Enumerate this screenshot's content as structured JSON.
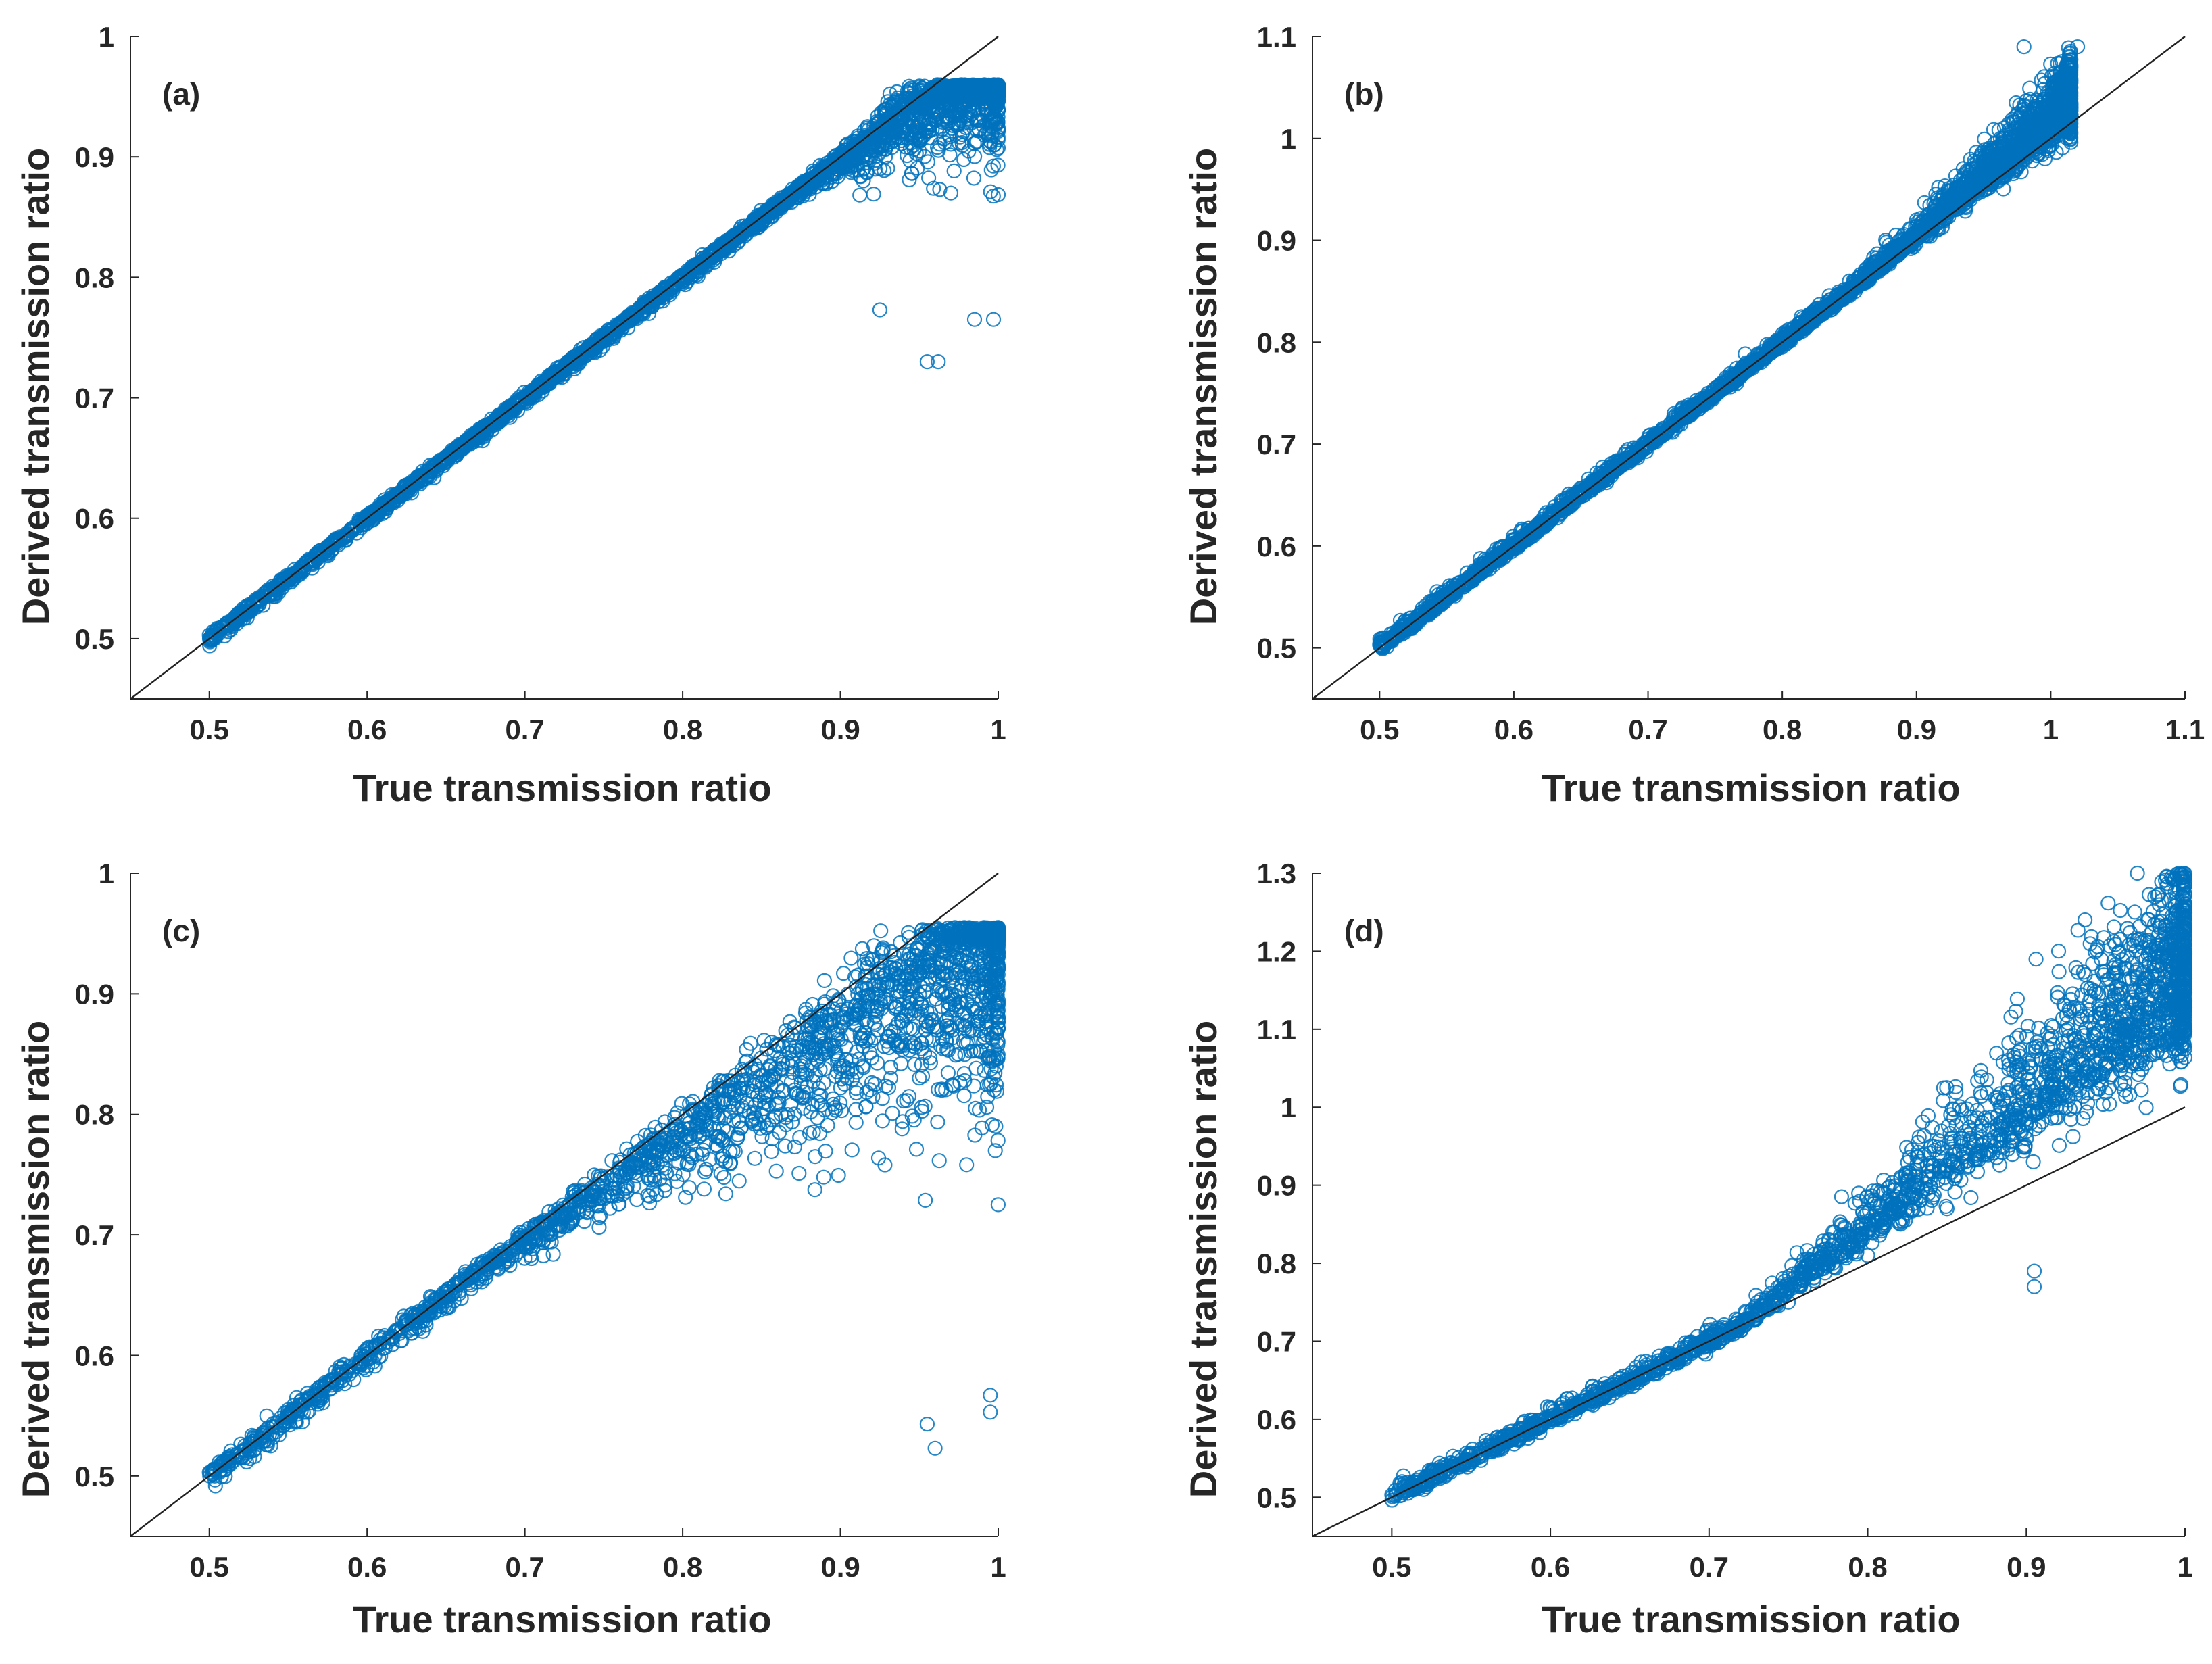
{
  "figure_title": "",
  "chart_data": [
    {
      "id": "a",
      "type": "scatter",
      "panel_label": "(a)",
      "xlabel": "True transmission ratio",
      "ylabel": "Derived transmission ratio",
      "xlim": [
        0.45,
        1.0
      ],
      "ylim": [
        0.45,
        1.0
      ],
      "xticks": [
        0.5,
        0.6,
        0.7,
        0.8,
        0.9,
        1.0
      ],
      "xtick_labels": [
        "0.5",
        "0.6",
        "0.7",
        "0.8",
        "0.9",
        "1"
      ],
      "yticks": [
        0.5,
        0.6,
        0.7,
        0.8,
        0.9,
        1.0
      ],
      "ytick_labels": [
        "0.5",
        "0.6",
        "0.7",
        "0.8",
        "0.9",
        "1"
      ],
      "reference_line": {
        "from": [
          0.45,
          0.45
        ],
        "to": [
          1.0,
          1.0
        ],
        "color": "#222222"
      },
      "marker": "open-circle",
      "marker_color": "#0072BD",
      "distribution": "tight along 1:1 line; below 1:1 with wide scatter for x > 0.85; main cloud around y 0.86-0.93 near x 0.95",
      "generator": {
        "x_min": 0.5,
        "x_max": 1.0,
        "n_points": 3000,
        "bend_start": 0.87,
        "bend_slope": 0.9,
        "spread_base": 0.003,
        "spread_tail": 0.035,
        "tail_skew": -1,
        "y_cap": 0.96
      },
      "points": [
        [
          0.5,
          0.503
        ],
        [
          0.51,
          0.51
        ],
        [
          0.52,
          0.519
        ],
        [
          0.53,
          0.527
        ],
        [
          0.545,
          0.548
        ],
        [
          0.55,
          0.551
        ],
        [
          0.57,
          0.573
        ],
        [
          0.6,
          0.599
        ],
        [
          0.65,
          0.651
        ],
        [
          0.7,
          0.701
        ],
        [
          0.75,
          0.752
        ],
        [
          0.8,
          0.795
        ],
        [
          0.85,
          0.845
        ],
        [
          0.9,
          0.893
        ],
        [
          0.95,
          0.905
        ],
        [
          0.97,
          0.87
        ],
        [
          0.955,
          0.73
        ],
        [
          0.962,
          0.73
        ],
        [
          0.925,
          0.773
        ],
        [
          0.985,
          0.765
        ],
        [
          0.997,
          0.765
        ]
      ]
    },
    {
      "id": "b",
      "type": "scatter",
      "panel_label": "(b)",
      "xlabel": "True transmission ratio",
      "ylabel": "Derived transmission ratio",
      "xlim": [
        0.45,
        1.1
      ],
      "ylim": [
        0.45,
        1.1
      ],
      "xticks": [
        0.5,
        0.6,
        0.7,
        0.8,
        0.9,
        1.0,
        1.1
      ],
      "xtick_labels": [
        "0.5",
        "0.6",
        "0.7",
        "0.8",
        "0.9",
        "1",
        "1.1"
      ],
      "yticks": [
        0.5,
        0.6,
        0.7,
        0.8,
        0.9,
        1.0,
        1.1
      ],
      "ytick_labels": [
        "0.5",
        "0.6",
        "0.7",
        "0.8",
        "0.9",
        "1",
        "1.1"
      ],
      "reference_line": {
        "from": [
          0.45,
          0.45
        ],
        "to": [
          1.1,
          1.1
        ],
        "color": "#222222"
      },
      "marker": "open-circle",
      "marker_color": "#0072BD",
      "distribution": "tight along 1:1 line; slightly above for x > 0.85 reaching y 1.09 at x 0.97-1.02",
      "generator": {
        "x_min": 0.5,
        "x_max": 1.015,
        "n_points": 3000,
        "bend_start": 0.85,
        "bend_slope": 1.12,
        "spread_base": 0.004,
        "spread_tail": 0.02,
        "tail_skew": 1,
        "y_cap": 1.09
      },
      "points": [
        [
          0.5,
          0.503
        ],
        [
          0.51,
          0.51
        ],
        [
          0.53,
          0.527
        ],
        [
          0.55,
          0.551
        ],
        [
          0.6,
          0.603
        ],
        [
          0.65,
          0.652
        ],
        [
          0.7,
          0.705
        ],
        [
          0.75,
          0.755
        ],
        [
          0.8,
          0.8
        ],
        [
          0.85,
          0.86
        ],
        [
          0.9,
          0.92
        ],
        [
          0.95,
          0.98
        ],
        [
          1.0,
          1.02
        ],
        [
          1.015,
          1.03
        ],
        [
          0.98,
          1.09
        ],
        [
          1.02,
          1.09
        ]
      ]
    },
    {
      "id": "c",
      "type": "scatter",
      "panel_label": "(c)",
      "xlabel": "True transmission ratio",
      "ylabel": "Derived transmission ratio",
      "xlim": [
        0.45,
        1.0
      ],
      "ylim": [
        0.45,
        1.0
      ],
      "xticks": [
        0.5,
        0.6,
        0.7,
        0.8,
        0.9,
        1.0
      ],
      "xtick_labels": [
        "0.5",
        "0.6",
        "0.7",
        "0.8",
        "0.9",
        "1"
      ],
      "yticks": [
        0.5,
        0.6,
        0.7,
        0.8,
        0.9,
        1.0
      ],
      "ytick_labels": [
        "0.5",
        "0.6",
        "0.7",
        "0.8",
        "0.9",
        "1"
      ],
      "reference_line": {
        "from": [
          0.45,
          0.45
        ],
        "to": [
          1.0,
          1.0
        ],
        "color": "#222222"
      },
      "marker": "open-circle",
      "marker_color": "#0072BD",
      "distribution": "near 1:1 line for x < 0.7; widening scatter below the line above 0.7; dense cloud at x 0.9-1.0, y 0.65-0.95; outliers down to 0.52",
      "generator": {
        "x_min": 0.5,
        "x_max": 1.0,
        "n_points": 2200,
        "bend_start": 0.68,
        "bend_slope": 0.85,
        "spread_base": 0.006,
        "spread_tail": 0.06,
        "tail_skew": -1,
        "y_cap": 0.955
      },
      "points": [
        [
          0.5,
          0.503
        ],
        [
          0.51,
          0.505
        ],
        [
          0.52,
          0.52
        ],
        [
          0.55,
          0.555
        ],
        [
          0.6,
          0.605
        ],
        [
          0.65,
          0.645
        ],
        [
          0.7,
          0.69
        ],
        [
          0.75,
          0.73
        ],
        [
          0.8,
          0.77
        ],
        [
          0.85,
          0.8
        ],
        [
          0.9,
          0.84
        ],
        [
          0.95,
          0.83
        ],
        [
          0.96,
          0.523
        ],
        [
          0.955,
          0.543
        ],
        [
          0.995,
          0.553
        ],
        [
          0.995,
          0.567
        ]
      ]
    },
    {
      "id": "d",
      "type": "scatter",
      "panel_label": "(d)",
      "xlabel": "True transmission ratio",
      "ylabel": "Derived transmission ratio",
      "xlim": [
        0.45,
        1.0
      ],
      "ylim": [
        0.45,
        1.3
      ],
      "xticks": [
        0.5,
        0.6,
        0.7,
        0.8,
        0.9,
        1.0
      ],
      "xtick_labels": [
        "0.5",
        "0.6",
        "0.7",
        "0.8",
        "0.9",
        "1"
      ],
      "yticks": [
        0.5,
        0.6,
        0.7,
        0.8,
        0.9,
        1.0,
        1.1,
        1.2,
        1.3
      ],
      "ytick_labels": [
        "0.5",
        "0.6",
        "0.7",
        "0.8",
        "0.9",
        "1",
        "1.1",
        "1.2",
        "1.3"
      ],
      "reference_line": {
        "from": [
          0.45,
          0.45
        ],
        "to": [
          1.0,
          1.0
        ],
        "color": "#222222"
      },
      "marker": "open-circle",
      "marker_color": "#0072BD",
      "distribution": "near 1:1 line for x < 0.7; above 1:1 with growing spread; dense cloud x 0.88-1.0, y 0.85-1.3",
      "generator": {
        "x_min": 0.5,
        "x_max": 1.0,
        "n_points": 2400,
        "bend_start": 0.72,
        "bend_slope": 1.6,
        "spread_base": 0.007,
        "spread_tail": 0.08,
        "tail_skew": 1,
        "y_cap": 1.3
      },
      "points": [
        [
          0.5,
          0.503
        ],
        [
          0.51,
          0.505
        ],
        [
          0.52,
          0.51
        ],
        [
          0.55,
          0.545
        ],
        [
          0.6,
          0.6
        ],
        [
          0.65,
          0.65
        ],
        [
          0.7,
          0.7
        ],
        [
          0.75,
          0.75
        ],
        [
          0.8,
          0.81
        ],
        [
          0.85,
          0.87
        ],
        [
          0.9,
          0.96
        ],
        [
          0.95,
          1.05
        ],
        [
          1.0,
          1.1
        ],
        [
          0.97,
          1.3
        ],
        [
          0.905,
          0.77
        ],
        [
          0.905,
          0.79
        ]
      ]
    }
  ]
}
